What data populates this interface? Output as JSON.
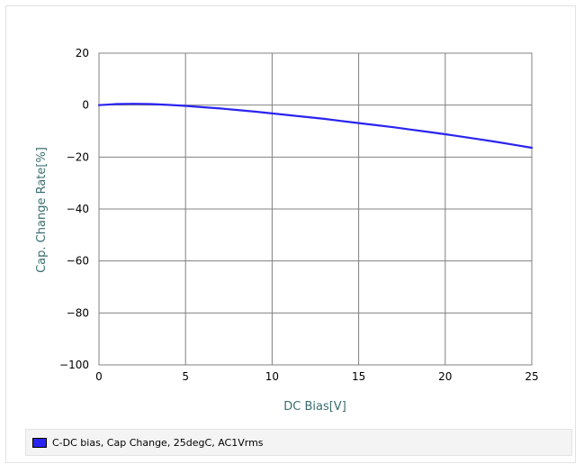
{
  "chart_data": {
    "type": "line",
    "title": "",
    "xlabel": "DC Bias[V]",
    "ylabel": "Cap. Change Rate[%]",
    "xlim": [
      0,
      25
    ],
    "ylim": [
      -100,
      20
    ],
    "x_ticks": [
      "0",
      "5",
      "10",
      "15",
      "20",
      "25"
    ],
    "y_ticks": [
      "20",
      "0",
      "−20",
      "−40",
      "−60",
      "−80",
      "−100"
    ],
    "grid": true,
    "legend_position": "bottom",
    "colors": {
      "series": "#2a24f0",
      "grid": "#808080",
      "axis_title": "#3a6e6e"
    },
    "series": [
      {
        "name": "C-DC bias, Cap Change, 25degC, AC1Vrms",
        "x": [
          0,
          1,
          2,
          3,
          4,
          5,
          6,
          7,
          8,
          9,
          10,
          11,
          12,
          13,
          14,
          15,
          16,
          17,
          18,
          19,
          20,
          21,
          22,
          23,
          24,
          25
        ],
        "y": [
          0,
          0.4,
          0.5,
          0.4,
          0.1,
          -0.3,
          -0.8,
          -1.3,
          -1.9,
          -2.5,
          -3.2,
          -3.9,
          -4.6,
          -5.3,
          -6.1,
          -6.9,
          -7.7,
          -8.5,
          -9.4,
          -10.3,
          -11.2,
          -12.2,
          -13.2,
          -14.2,
          -15.3,
          -16.4
        ]
      }
    ]
  }
}
